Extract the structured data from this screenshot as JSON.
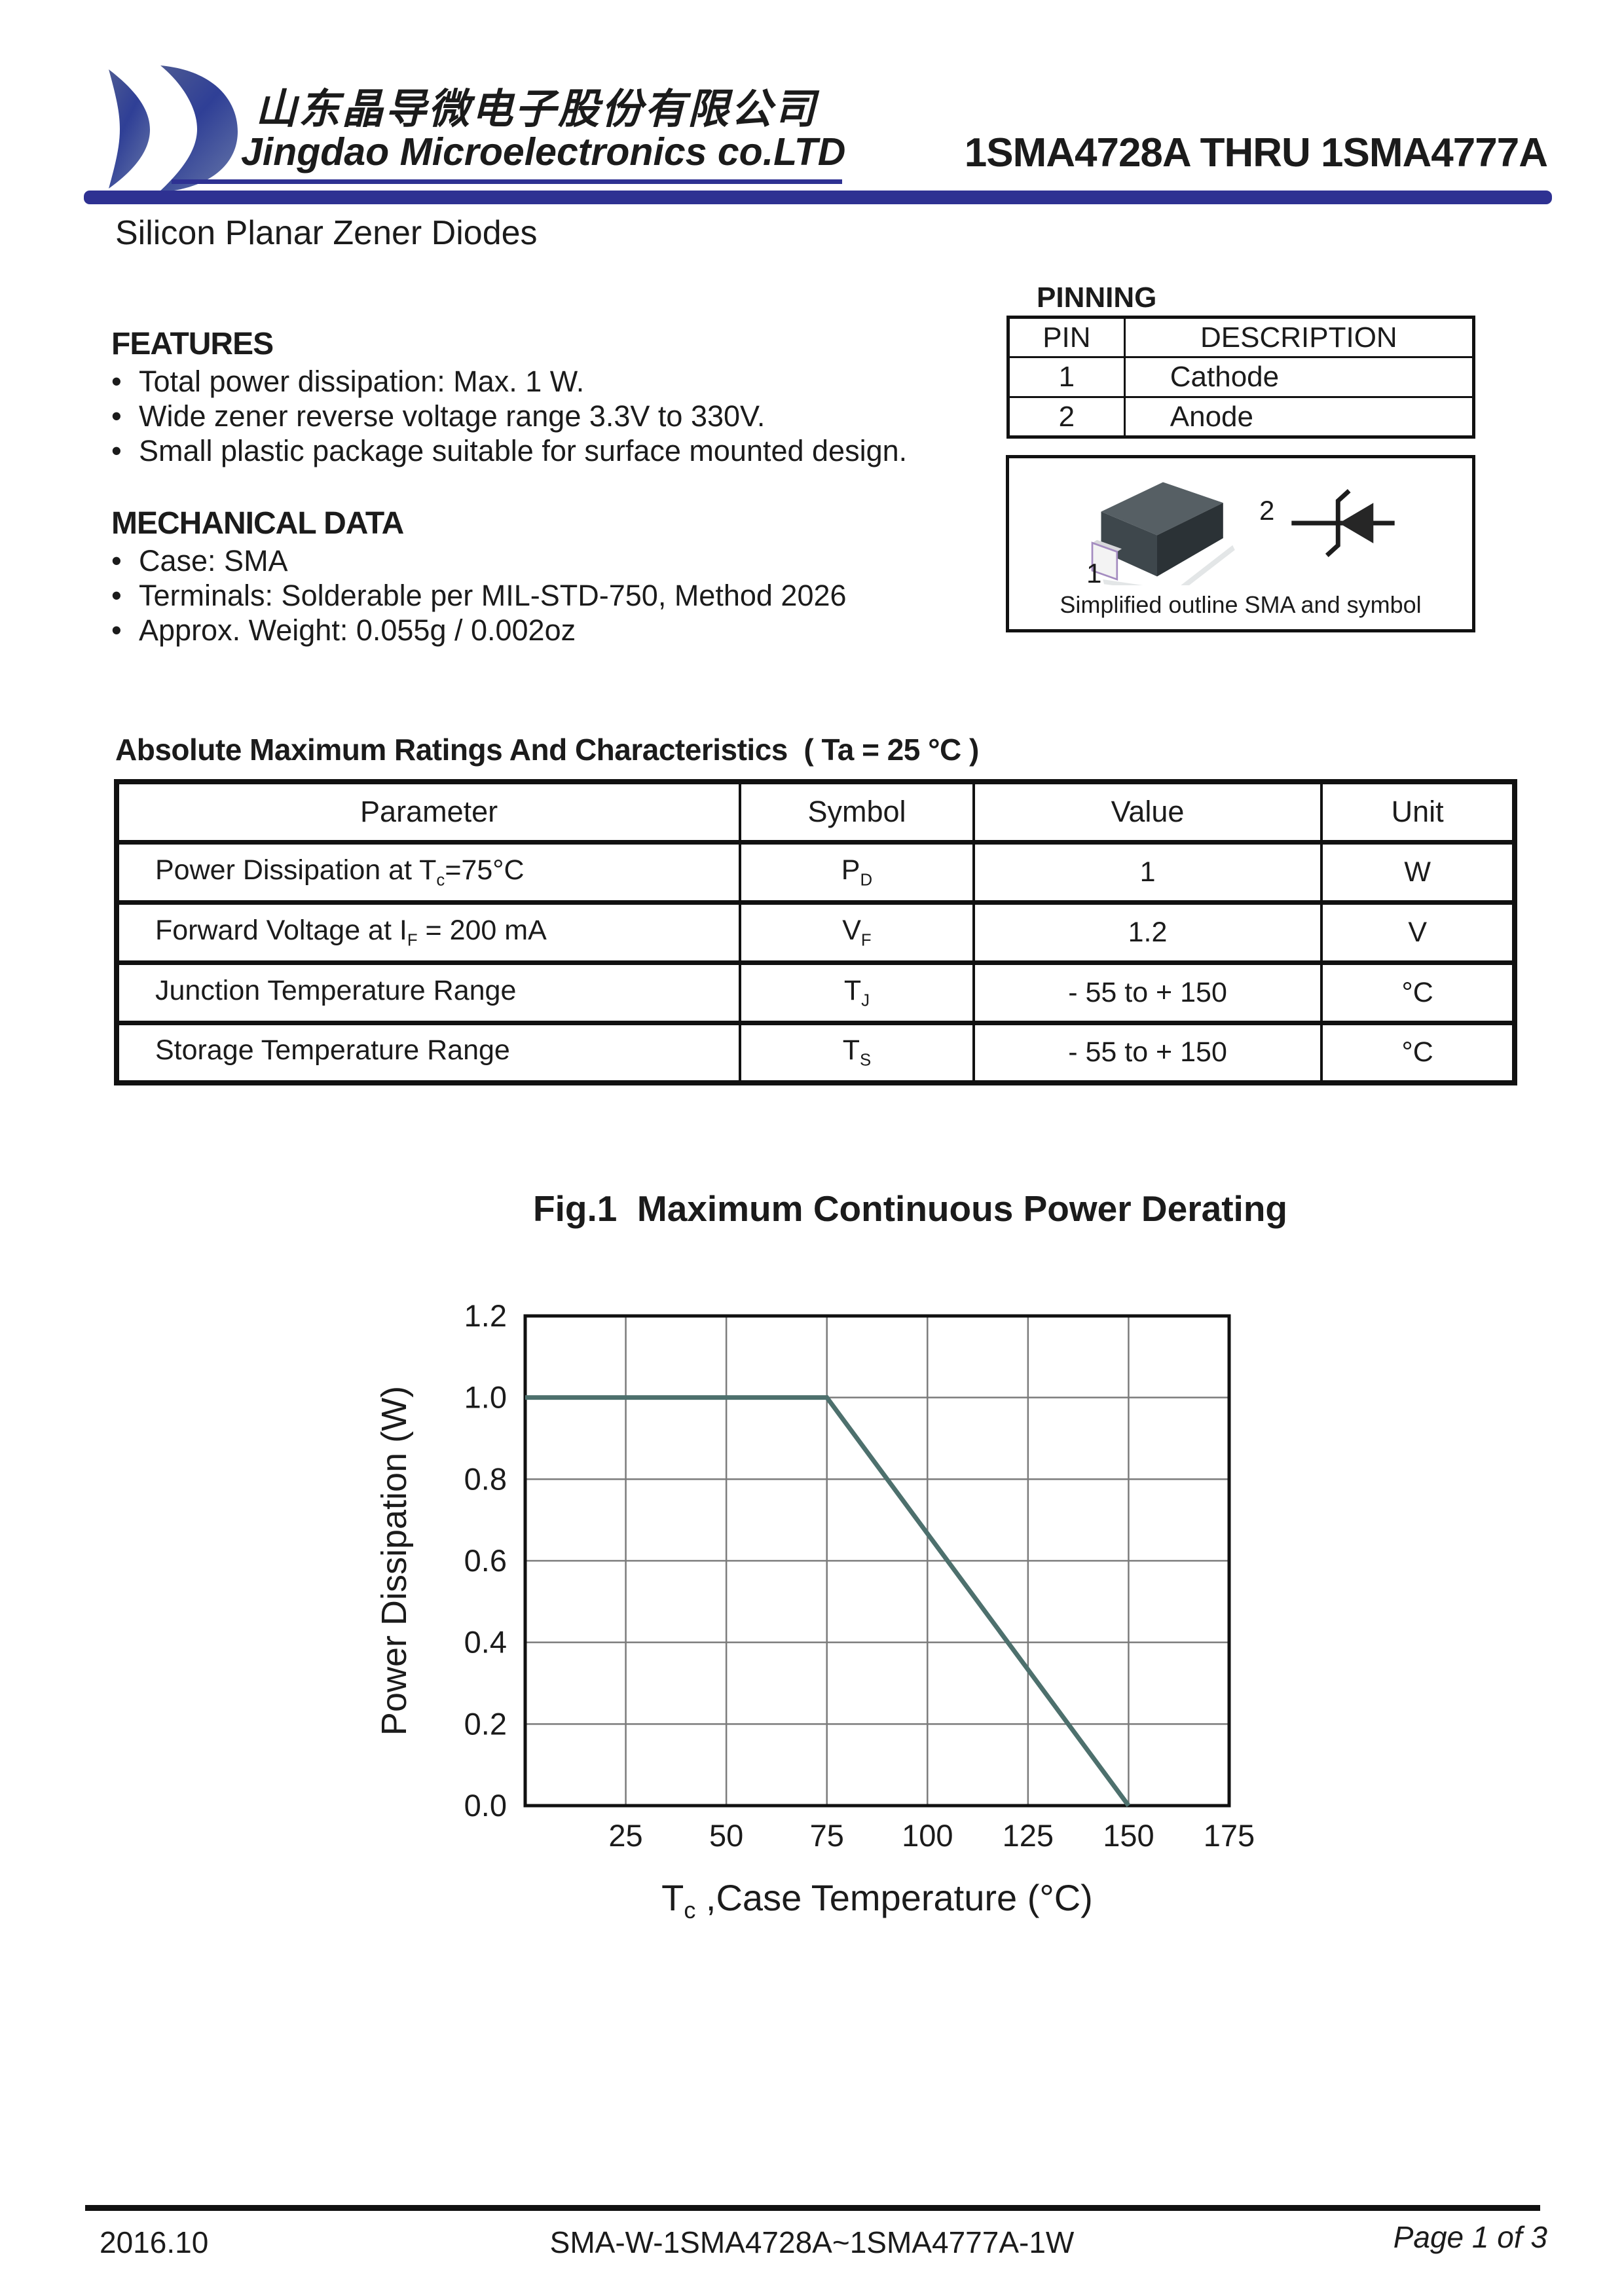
{
  "header": {
    "company_cn": "山东晶导微电子股份有限公司",
    "company_en": "Jingdao Microelectronics co.LTD",
    "part_range": "1SMA4728A THRU 1SMA4777A",
    "accent_color": "#2e3192"
  },
  "subtitle": "Silicon Planar Zener Diodes",
  "bullet_char": "•",
  "features": {
    "heading": "FEATURES",
    "items": [
      "Total power dissipation: Max. 1 W.",
      "Wide zener reverse voltage range 3.3V to 330V.",
      "Small plastic package suitable for surface mounted design."
    ]
  },
  "mechanical": {
    "heading": "MECHANICAL DATA",
    "items": [
      "Case: SMA",
      "Terminals: Solderable per MIL-STD-750, Method 2026",
      "Approx. Weight: 0.055g / 0.002oz"
    ]
  },
  "pinning": {
    "heading": "PINNING",
    "columns": [
      "PIN",
      "DESCRIPTION"
    ],
    "rows": [
      [
        "1",
        "Cathode"
      ],
      [
        "2",
        "Anode"
      ]
    ]
  },
  "outline": {
    "pin1_label": "1",
    "pin2_label": "2",
    "caption": "Simplified outline SMA and symbol"
  },
  "ratings": {
    "heading": "Absolute Maximum Ratings And Characteristics  ( Ta = 25 °C )",
    "columns": [
      "Parameter",
      "Symbol",
      "Value",
      "Unit"
    ],
    "rows": [
      {
        "parameter_pre": "Power Dissipation at T",
        "parameter_sub": "c",
        "parameter_post": "=75°C",
        "symbol_base": "P",
        "symbol_sub": "D",
        "value": "1",
        "unit": "W"
      },
      {
        "parameter_pre": "Forward Voltage at I",
        "parameter_sub": "F",
        "parameter_post": " = 200 mA",
        "symbol_base": "V",
        "symbol_sub": "F",
        "value": "1.2",
        "unit": "V"
      },
      {
        "parameter_pre": "Junction Temperature Range",
        "parameter_sub": "",
        "parameter_post": "",
        "symbol_base": "T",
        "symbol_sub": "J",
        "value": "- 55 to + 150",
        "unit": "°C"
      },
      {
        "parameter_pre": "Storage Temperature Range",
        "parameter_sub": "",
        "parameter_post": "",
        "symbol_base": "T",
        "symbol_sub": "S",
        "value": "- 55 to + 150",
        "unit": "°C"
      }
    ]
  },
  "chart_data": {
    "type": "line",
    "title": "Fig.1  Maximum Continuous Power Derating",
    "ylabel": "Power Dissipation (W)",
    "xlabel_pre": "T",
    "xlabel_sub": "c",
    "xlabel_post": " ,Case Temperature (°C)",
    "xlim": [
      0,
      175
    ],
    "ylim": [
      0,
      1.2
    ],
    "x_ticks": [
      25,
      50,
      75,
      100,
      125,
      150,
      175
    ],
    "y_ticks": [
      0,
      0.2,
      0.4,
      0.6,
      0.8,
      1.0,
      1.2
    ],
    "grid": true,
    "legend_position": "none",
    "line_color": "#4d706d",
    "grid_color": "#7b7b7b",
    "series": [
      {
        "points": [
          [
            0,
            1.0
          ],
          [
            75,
            1.0
          ],
          [
            150,
            0.0
          ]
        ]
      }
    ]
  },
  "footer": {
    "date": "2016.10",
    "doc_code": "SMA-W-1SMA4728A~1SMA4777A-1W",
    "page": "Page 1 of 3"
  }
}
